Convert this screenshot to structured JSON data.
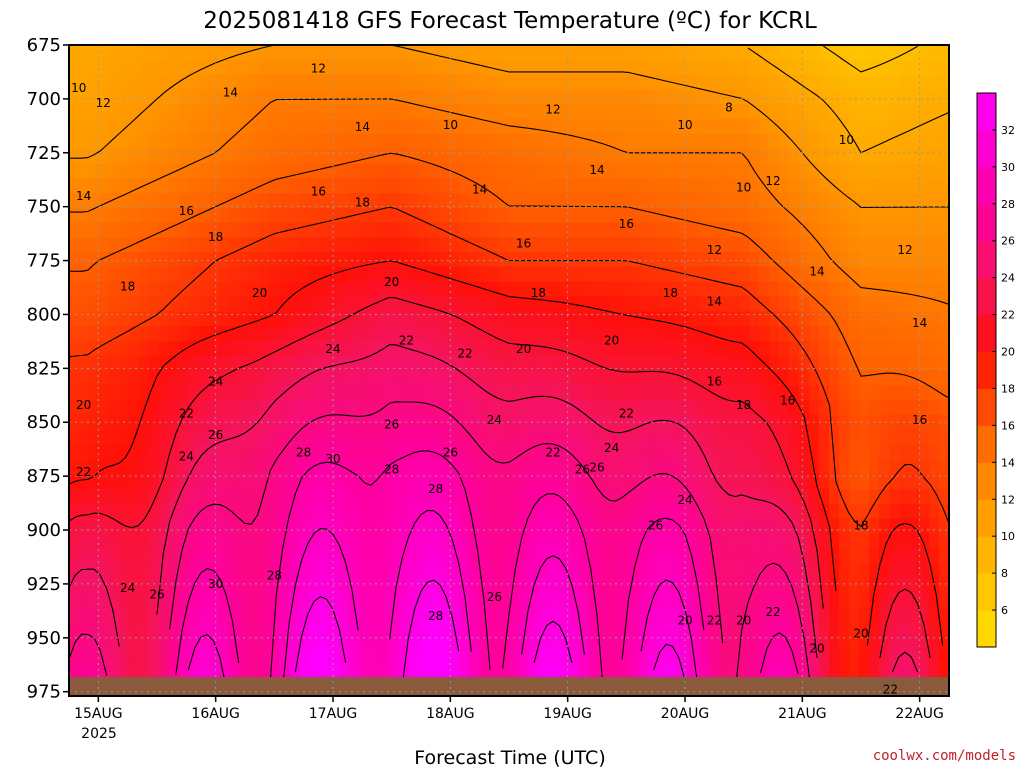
{
  "title": "2025081418 GFS Forecast Temperature (ºC) for KCRL",
  "xlabel": "Forecast Time (UTC)",
  "credit": "coolwx.com/models",
  "year_label": "2025",
  "chart_data": {
    "type": "heatmap",
    "title": "2025081418 GFS Forecast Temperature (ºC) for KCRL",
    "xlabel": "Forecast Time (UTC)",
    "ylabel": "",
    "x_ticks": [
      "15AUG",
      "16AUG",
      "17AUG",
      "18AUG",
      "19AUG",
      "20AUG",
      "21AUG",
      "22AUG"
    ],
    "x_tick_sublabel": "2025",
    "xlim": [
      "2025-08-14T18:00Z",
      "2025-08-22T06:00Z"
    ],
    "y_ticks": [
      675,
      700,
      725,
      750,
      775,
      800,
      825,
      850,
      875,
      900,
      925,
      950,
      975
    ],
    "ylim": [
      675,
      977
    ],
    "y_inverted": true,
    "colorbar_ticks": [
      6,
      8,
      10,
      12,
      14,
      16,
      18,
      20,
      22,
      24,
      26,
      28,
      30,
      32
    ],
    "colorbar_range": [
      4,
      34
    ],
    "grid": true,
    "legend": "colorbar right",
    "levels": [
      675,
      700,
      725,
      750,
      775,
      800,
      825,
      850,
      875,
      900,
      925,
      950,
      975
    ],
    "days": [
      {
        "day": "15AUG",
        "temps": [
          11,
          12,
          13,
          15,
          17,
          18,
          20,
          21,
          22,
          24,
          25,
          26,
          27
        ]
      },
      {
        "day": "16AUG",
        "temps": [
          12,
          14,
          15,
          17,
          19,
          20,
          23,
          25,
          27,
          28,
          29,
          30,
          31
        ]
      },
      {
        "day": "17AUG",
        "temps": [
          12,
          14,
          16,
          18,
          20,
          23,
          25,
          27,
          29,
          30,
          31,
          32,
          33
        ]
      },
      {
        "day": "18AUG",
        "temps": [
          11,
          13,
          15,
          16,
          18,
          21,
          23,
          25,
          27,
          28,
          29,
          30,
          31
        ]
      },
      {
        "day": "19AUG",
        "temps": [
          11,
          13,
          14,
          16,
          18,
          20,
          22,
          24,
          26,
          28,
          29,
          30,
          31
        ]
      },
      {
        "day": "20AUG",
        "temps": [
          10,
          12,
          14,
          15,
          17,
          19,
          21,
          23,
          24,
          26,
          27,
          28,
          29
        ]
      },
      {
        "day": "21AUG",
        "temps": [
          7,
          9,
          10,
          12,
          13,
          15,
          16,
          17,
          17,
          19,
          20,
          21,
          22
        ]
      },
      {
        "day": "22AUG",
        "temps": [
          9,
          10,
          11,
          12,
          13,
          14,
          15,
          17,
          18,
          19,
          20,
          21,
          22
        ]
      }
    ],
    "contour_labels": [
      {
        "text": "10",
        "time": "2025-08-14T20:00Z",
        "p": 695
      },
      {
        "text": "12",
        "time": "2025-08-15T01:00Z",
        "p": 702
      },
      {
        "text": "12",
        "time": "2025-08-16T21:00Z",
        "p": 686
      },
      {
        "text": "14",
        "time": "2025-08-16T03:00Z",
        "p": 697
      },
      {
        "text": "14",
        "time": "2025-08-17T06:00Z",
        "p": 713
      },
      {
        "text": "10",
        "time": "2025-08-18T00:00Z",
        "p": 712
      },
      {
        "text": "12",
        "time": "2025-08-18T21:00Z",
        "p": 705
      },
      {
        "text": "10",
        "time": "2025-08-20T00:00Z",
        "p": 712
      },
      {
        "text": "8",
        "time": "2025-08-20T09:00Z",
        "p": 704
      },
      {
        "text": "10",
        "time": "2025-08-21T09:00Z",
        "p": 719
      },
      {
        "text": "14",
        "time": "2025-08-14T21:00Z",
        "p": 745
      },
      {
        "text": "16",
        "time": "2025-08-15T18:00Z",
        "p": 752
      },
      {
        "text": "16",
        "time": "2025-08-16T21:00Z",
        "p": 743
      },
      {
        "text": "18",
        "time": "2025-08-17T06:00Z",
        "p": 748
      },
      {
        "text": "14",
        "time": "2025-08-18T06:00Z",
        "p": 742
      },
      {
        "text": "14",
        "time": "2025-08-19T06:00Z",
        "p": 733
      },
      {
        "text": "16",
        "time": "2025-08-19T12:00Z",
        "p": 758
      },
      {
        "text": "16",
        "time": "2025-08-18T15:00Z",
        "p": 767
      },
      {
        "text": "10",
        "time": "2025-08-20T12:00Z",
        "p": 741
      },
      {
        "text": "12",
        "time": "2025-08-20T18:00Z",
        "p": 738
      },
      {
        "text": "12",
        "time": "2025-08-20T06:00Z",
        "p": 770
      },
      {
        "text": "12",
        "time": "2025-08-21T21:00Z",
        "p": 770
      },
      {
        "text": "18",
        "time": "2025-08-16T00:00Z",
        "p": 764
      },
      {
        "text": "18",
        "time": "2025-08-15T06:00Z",
        "p": 787
      },
      {
        "text": "14",
        "time": "2025-08-21T03:00Z",
        "p": 780
      },
      {
        "text": "20",
        "time": "2025-08-16T09:00Z",
        "p": 790
      },
      {
        "text": "20",
        "time": "2025-08-17T12:00Z",
        "p": 785
      },
      {
        "text": "18",
        "time": "2025-08-18T18:00Z",
        "p": 790
      },
      {
        "text": "18",
        "time": "2025-08-19T21:00Z",
        "p": 790
      },
      {
        "text": "14",
        "time": "2025-08-20T06:00Z",
        "p": 794
      },
      {
        "text": "22",
        "time": "2025-08-17T15:00Z",
        "p": 812
      },
      {
        "text": "24",
        "time": "2025-08-17T00:00Z",
        "p": 816
      },
      {
        "text": "14",
        "time": "2025-08-22T00:00Z",
        "p": 804
      },
      {
        "text": "20",
        "time": "2025-08-18T15:00Z",
        "p": 816
      },
      {
        "text": "20",
        "time": "2025-08-19T09:00Z",
        "p": 812
      },
      {
        "text": "22",
        "time": "2025-08-18T03:00Z",
        "p": 818
      },
      {
        "text": "24",
        "time": "2025-08-16T00:00Z",
        "p": 831
      },
      {
        "text": "16",
        "time": "2025-08-20T06:00Z",
        "p": 831
      },
      {
        "text": "16",
        "time": "2025-08-20T21:00Z",
        "p": 840
      },
      {
        "text": "18",
        "time": "2025-08-20T12:00Z",
        "p": 842
      },
      {
        "text": "20",
        "time": "2025-08-14T21:00Z",
        "p": 842
      },
      {
        "text": "22",
        "time": "2025-08-15T18:00Z",
        "p": 846
      },
      {
        "text": "22",
        "time": "2025-08-19T12:00Z",
        "p": 846
      },
      {
        "text": "26",
        "time": "2025-08-17T12:00Z",
        "p": 851
      },
      {
        "text": "24",
        "time": "2025-08-18T09:00Z",
        "p": 849
      },
      {
        "text": "16",
        "time": "2025-08-22T00:00Z",
        "p": 849
      },
      {
        "text": "26",
        "time": "2025-08-16T00:00Z",
        "p": 856
      },
      {
        "text": "24",
        "time": "2025-08-15T18:00Z",
        "p": 866
      },
      {
        "text": "28",
        "time": "2025-08-16T18:00Z",
        "p": 864
      },
      {
        "text": "30",
        "time": "2025-08-17T00:00Z",
        "p": 867
      },
      {
        "text": "26",
        "time": "2025-08-18T00:00Z",
        "p": 864
      },
      {
        "text": "22",
        "time": "2025-08-18T21:00Z",
        "p": 864
      },
      {
        "text": "24",
        "time": "2025-08-19T09:00Z",
        "p": 862
      },
      {
        "text": "22",
        "time": "2025-08-14T21:00Z",
        "p": 873
      },
      {
        "text": "28",
        "time": "2025-08-17T12:00Z",
        "p": 872
      },
      {
        "text": "26",
        "time": "2025-08-19T03:00Z",
        "p": 872
      },
      {
        "text": "26",
        "time": "2025-08-19T06:00Z",
        "p": 871
      },
      {
        "text": "28",
        "time": "2025-08-17T21:00Z",
        "p": 881
      },
      {
        "text": "24",
        "time": "2025-08-20T00:00Z",
        "p": 886
      },
      {
        "text": "26",
        "time": "2025-08-19T18:00Z",
        "p": 898
      },
      {
        "text": "18",
        "time": "2025-08-21T12:00Z",
        "p": 898
      },
      {
        "text": "24",
        "time": "2025-08-15T06:00Z",
        "p": 927
      },
      {
        "text": "26",
        "time": "2025-08-15T12:00Z",
        "p": 930
      },
      {
        "text": "30",
        "time": "2025-08-16T00:00Z",
        "p": 925
      },
      {
        "text": "28",
        "time": "2025-08-16T12:00Z",
        "p": 921
      },
      {
        "text": "26",
        "time": "2025-08-18T09:00Z",
        "p": 931
      },
      {
        "text": "28",
        "time": "2025-08-17T21:00Z",
        "p": 940
      },
      {
        "text": "20",
        "time": "2025-08-20T00:00Z",
        "p": 942
      },
      {
        "text": "22",
        "time": "2025-08-20T06:00Z",
        "p": 942
      },
      {
        "text": "20",
        "time": "2025-08-20T12:00Z",
        "p": 942
      },
      {
        "text": "22",
        "time": "2025-08-20T18:00Z",
        "p": 938
      },
      {
        "text": "20",
        "time": "2025-08-21T12:00Z",
        "p": 948
      },
      {
        "text": "20",
        "time": "2025-08-21T03:00Z",
        "p": 955
      },
      {
        "text": "22",
        "time": "2025-08-21T18:00Z",
        "p": 974
      }
    ]
  }
}
